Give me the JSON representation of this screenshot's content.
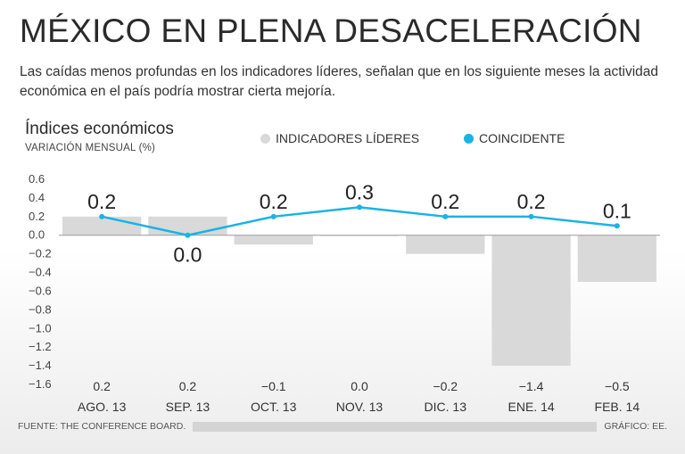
{
  "header": {
    "title": "MÉXICO EN PLENA DESACELERACIÓN",
    "subtitle": "Las caídas menos profundas en los indicadores líderes, señalan que en los siguiente meses la actividad económica en el país podría mostrar cierta mejoría."
  },
  "chart_header": {
    "title": "Índices económicos",
    "unit": "VARIACIÓN MENSUAL (%)"
  },
  "legend": {
    "leading": "INDICADORES LÍDERES",
    "coincident": "COINCIDENTE"
  },
  "colors": {
    "bar": "#d9d9d9",
    "line": "#19b3e6",
    "grid": "#9a9a9a"
  },
  "footer": {
    "source": "FUENTE: THE CONFERENCE BOARD.",
    "credit": "GRÁFICO: EE."
  },
  "chart_data": {
    "type": "bar",
    "title": "Índices económicos",
    "ylabel": "VARIACIÓN MENSUAL (%)",
    "ylim": [
      -1.6,
      0.6
    ],
    "yticks": [
      "0.6",
      "0.4",
      "0.2",
      "0.0",
      "−0.2",
      "−0.4",
      "−0.6",
      "−0.8",
      "−1.0",
      "−1.2",
      "−1.4",
      "−1.6"
    ],
    "ytick_values": [
      0.6,
      0.4,
      0.2,
      0.0,
      -0.2,
      -0.4,
      -0.6,
      -0.8,
      -1.0,
      -1.2,
      -1.4,
      -1.6
    ],
    "categories": [
      "AGO. 13",
      "SEP. 13",
      "OCT. 13",
      "NOV. 13",
      "DIC. 13",
      "ENE. 14",
      "FEB. 14"
    ],
    "series": [
      {
        "name": "INDICADORES LÍDERES",
        "type": "bar",
        "values": [
          0.2,
          0.2,
          -0.1,
          0.0,
          -0.2,
          -1.4,
          -0.5
        ],
        "labels": [
          "0.2",
          "0.2",
          "−0.1",
          "0.0",
          "−0.2",
          "−1.4",
          "−0.5"
        ]
      },
      {
        "name": "COINCIDENTE",
        "type": "line",
        "values": [
          0.2,
          0.0,
          0.2,
          0.3,
          0.2,
          0.2,
          0.1
        ],
        "labels": [
          "0.2",
          "0.0",
          "0.2",
          "0.3",
          "0.2",
          "0.2",
          "0.1"
        ]
      }
    ]
  }
}
